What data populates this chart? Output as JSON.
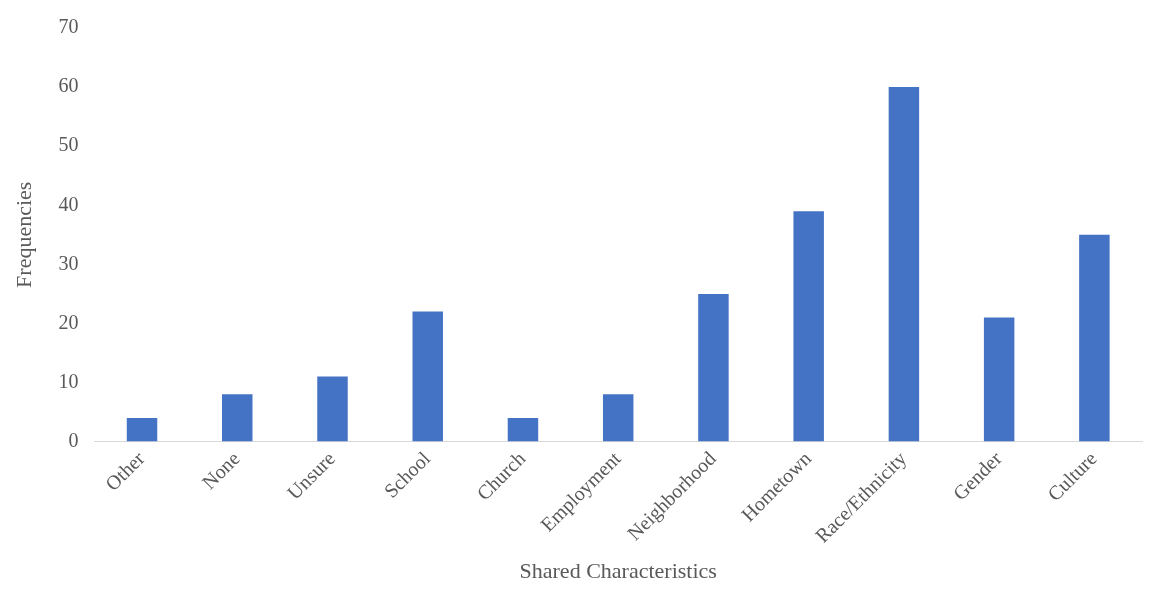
{
  "chart_data": {
    "type": "bar",
    "xlabel": "Shared Characteristics",
    "ylabel": "Frequencies",
    "categories": [
      "Other",
      "None",
      "Unsure",
      "School",
      "Church",
      "Employment",
      "Neighborhood",
      "Hometown",
      "Race/Ethnicity",
      "Gender",
      "Culture"
    ],
    "values": [
      4,
      8,
      11,
      22,
      4,
      8,
      25,
      39,
      60,
      21,
      35
    ],
    "color": "#4472c4",
    "ylim": [
      0,
      70
    ],
    "yticks": [
      0,
      10,
      20,
      30,
      40,
      50,
      60,
      70
    ],
    "grid": false,
    "legend": false
  }
}
